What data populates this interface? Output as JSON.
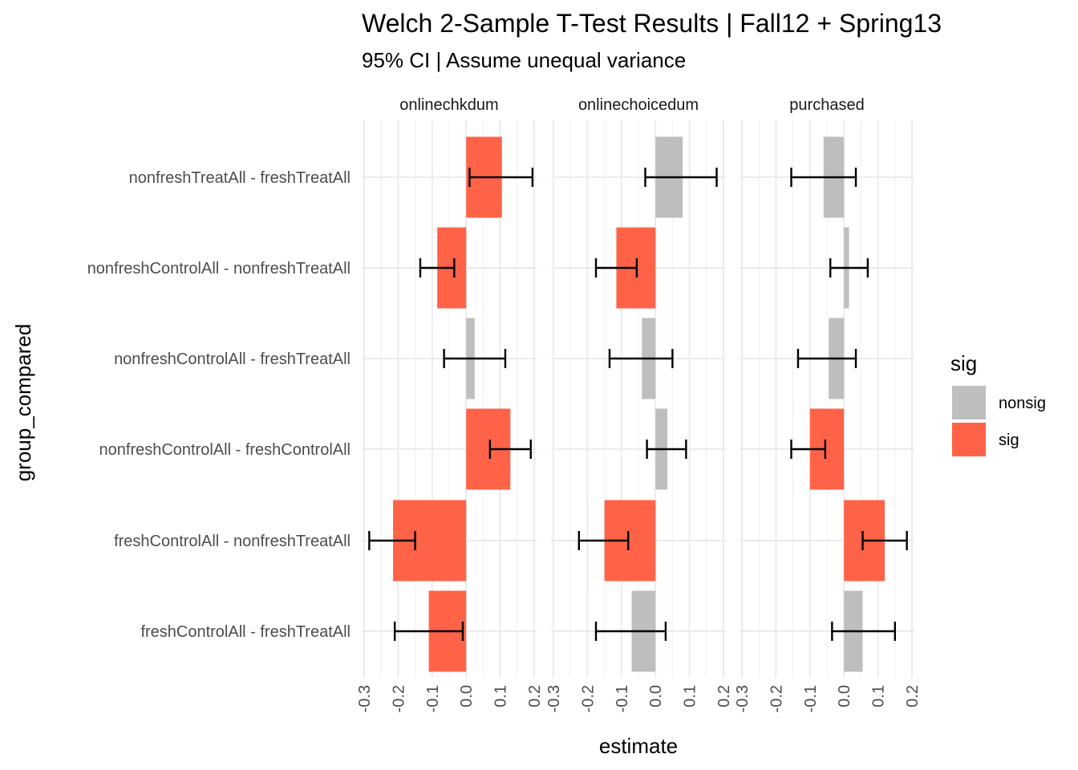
{
  "chart_data": {
    "type": "bar",
    "orientation": "horizontal",
    "title": "Welch 2-Sample T-Test Results | Fall12 + Spring13",
    "subtitle": "95% CI | Assume unequal variance",
    "xlabel": "estimate",
    "ylabel": "group_compared",
    "xlim": [
      -0.3,
      0.2
    ],
    "xticks": [
      -0.3,
      -0.2,
      -0.1,
      0.0,
      0.1,
      0.2
    ],
    "xtick_labels": [
      "-0.3",
      "-0.2",
      "-0.1",
      "0.0",
      "0.1",
      "0.2"
    ],
    "grid": true,
    "categories": [
      "nonfreshTreatAll - freshTreatAll",
      "nonfreshControlAll - nonfreshTreatAll",
      "nonfreshControlAll - freshTreatAll",
      "nonfreshControlAll - freshControlAll",
      "freshControlAll - nonfreshTreatAll",
      "freshControlAll - freshTreatAll"
    ],
    "legend": {
      "title": "sig",
      "position": "right",
      "entries": [
        {
          "label": "nonsig",
          "color": "#bebebe"
        },
        {
          "label": "sig",
          "color": "#ff6347"
        }
      ]
    },
    "panels": [
      {
        "name": "onlinechkdum",
        "estimates": [
          0.105,
          -0.085,
          0.025,
          0.13,
          -0.215,
          -0.11
        ],
        "ci_low": [
          0.01,
          -0.135,
          -0.065,
          0.07,
          -0.285,
          -0.21
        ],
        "ci_high": [
          0.195,
          -0.035,
          0.115,
          0.19,
          -0.15,
          -0.01
        ],
        "sig": [
          "sig",
          "sig",
          "nonsig",
          "sig",
          "sig",
          "sig"
        ]
      },
      {
        "name": "onlinechoicedum",
        "estimates": [
          0.08,
          -0.115,
          -0.04,
          0.035,
          -0.15,
          -0.07
        ],
        "ci_low": [
          -0.03,
          -0.175,
          -0.135,
          -0.025,
          -0.225,
          -0.175
        ],
        "ci_high": [
          0.18,
          -0.055,
          0.05,
          0.09,
          -0.08,
          0.03
        ],
        "sig": [
          "nonsig",
          "sig",
          "nonsig",
          "nonsig",
          "sig",
          "nonsig"
        ]
      },
      {
        "name": "purchased",
        "estimates": [
          -0.06,
          0.015,
          -0.045,
          -0.1,
          0.12,
          0.055
        ],
        "ci_low": [
          -0.155,
          -0.04,
          -0.135,
          -0.155,
          0.055,
          -0.035
        ],
        "ci_high": [
          0.035,
          0.07,
          0.035,
          -0.055,
          0.185,
          0.15
        ],
        "sig": [
          "nonsig",
          "nonsig",
          "nonsig",
          "sig",
          "sig",
          "nonsig"
        ]
      }
    ]
  }
}
